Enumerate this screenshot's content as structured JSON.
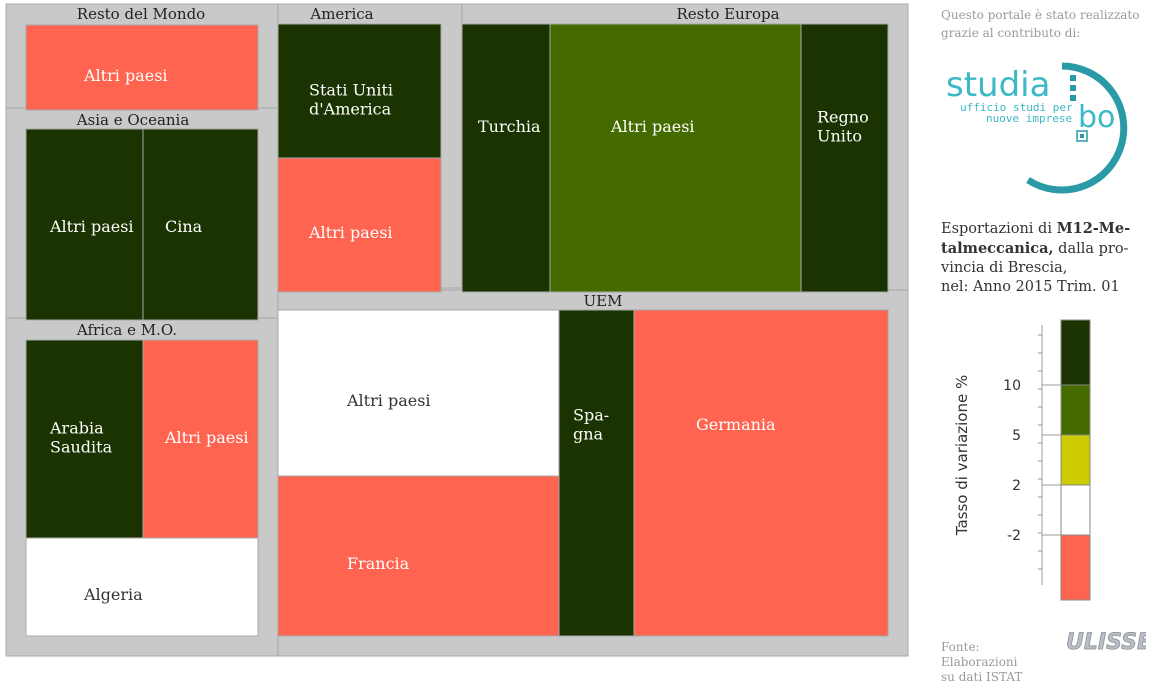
{
  "credit": {
    "line1": "Questo portale è stato realizzato",
    "line2": "grazie al contributo di:"
  },
  "studio_logo": {
    "word": "studia",
    "bo": "bo",
    "tagline1": "ufficio studi per",
    "tagline2": "nuove imprese",
    "color": "#2a9aa6"
  },
  "description": {
    "line1_prefix": "Esportazioni di ",
    "line1_bold": "M12-Me-",
    "line2_bold": "talmeccanica,",
    "line2_rest": " dalla pro-",
    "line3": "vincia di Brescia,",
    "line4": "nel: Anno 2015 Trim. 01"
  },
  "source": {
    "line1": "Fonte: Elaborazioni",
    "line2": "su dati ISTAT"
  },
  "ulisse_logo": "ULISSE",
  "colors": {
    "frame": "#c9c9c9",
    "frame_border": "#a8a8a8",
    "dark_green": "#1a3300",
    "olive": "#456b00",
    "yellow": "#cccc00",
    "white": "#ffffff",
    "salmon": "#ff6450",
    "label_light": "#ffffff",
    "label_dark": "#333333"
  },
  "chart_data": {
    "type": "treemap",
    "title": "",
    "color_class_thresholds": [
      -2,
      2,
      5,
      10
    ],
    "groups": [
      {
        "name": "Resto del Mondo",
        "items": [
          {
            "label": [
              "Altri paesi"
            ],
            "class": "salmon"
          }
        ]
      },
      {
        "name": "Asia e Oceania",
        "items": [
          {
            "label": [
              "Altri paesi"
            ],
            "class": "dark_green"
          },
          {
            "label": [
              "Cina"
            ],
            "class": "dark_green"
          }
        ]
      },
      {
        "name": "Africa e M.O.",
        "items": [
          {
            "label": [
              "Arabia",
              "Saudita"
            ],
            "class": "dark_green"
          },
          {
            "label": [
              "Altri paesi"
            ],
            "class": "salmon"
          },
          {
            "label": [
              "Algeria"
            ],
            "class": "white"
          }
        ]
      },
      {
        "name": "America",
        "items": [
          {
            "label": [
              "Stati Uniti",
              "d'America"
            ],
            "class": "dark_green"
          },
          {
            "label": [
              "Altri paesi"
            ],
            "class": "salmon"
          }
        ]
      },
      {
        "name": "Resto Europa",
        "items": [
          {
            "label": [
              "Turchia"
            ],
            "class": "dark_green"
          },
          {
            "label": [
              "Altri paesi"
            ],
            "class": "olive"
          },
          {
            "label": [
              "Regno",
              "Unito"
            ],
            "class": "dark_green"
          }
        ]
      },
      {
        "name": "UEM",
        "items": [
          {
            "label": [
              "Altri paesi"
            ],
            "class": "white"
          },
          {
            "label": [
              "Francia"
            ],
            "class": "salmon"
          },
          {
            "label": [
              "Spa-",
              "gna"
            ],
            "class": "dark_green"
          },
          {
            "label": [
              "Germania"
            ],
            "class": "salmon"
          }
        ]
      }
    ],
    "legend": {
      "ylabel": "Tasso di variazione %",
      "ticks": [
        "10",
        "5",
        "2",
        "-2"
      ],
      "bands": [
        "dark_green",
        "olive",
        "yellow",
        "white",
        "salmon"
      ]
    }
  }
}
